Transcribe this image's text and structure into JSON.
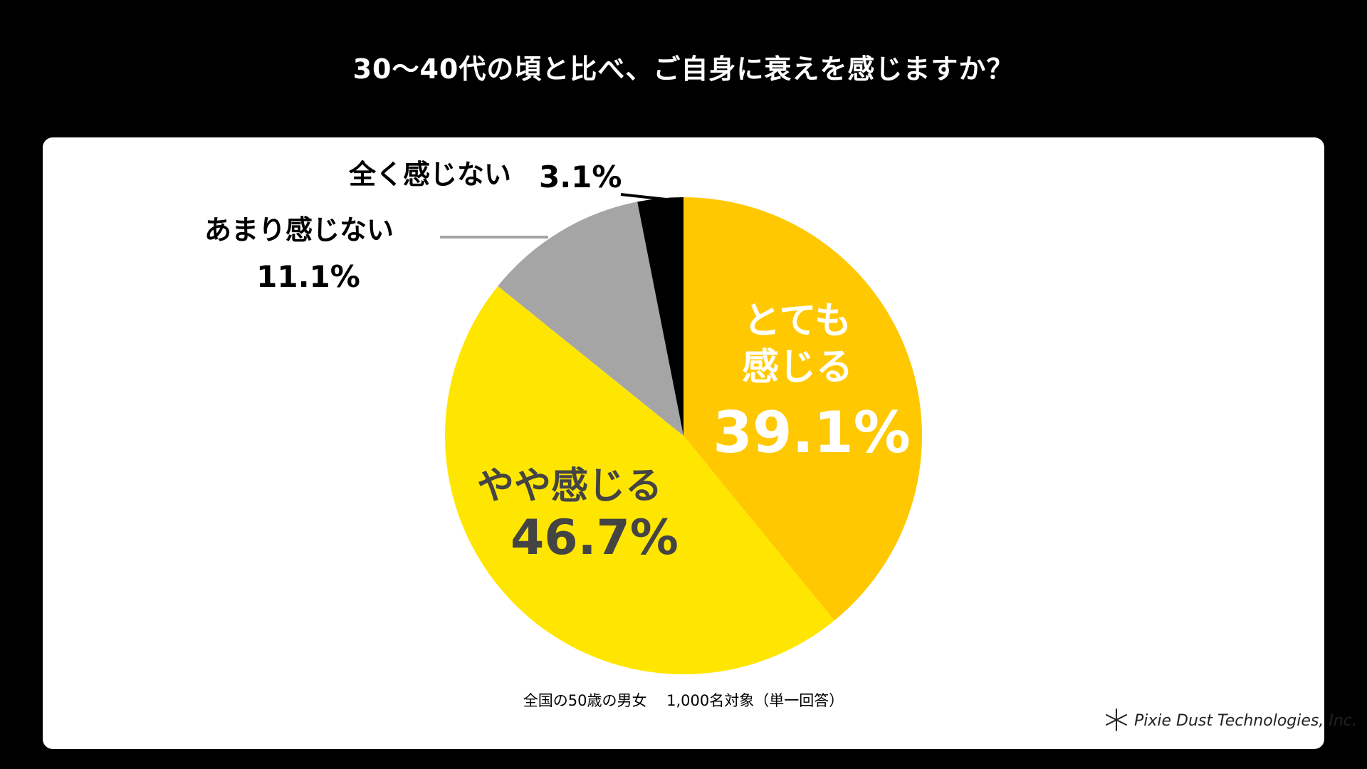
{
  "title": "30〜40代の頃と比べ、ご自身に衰えを感じますか？",
  "footnote": "全国の50歳の男女　 1,000名対象（単一回答）",
  "brand": {
    "name": "Pixie Dust Technologies, Inc.",
    "icon": "asterisk-logo-icon"
  },
  "colors": {
    "background": "#000000",
    "card": "#ffffff",
    "slice_strong": "#FFC800",
    "slice_some": "#FFE600",
    "slice_little": "#A5A5A5",
    "slice_none": "#000000",
    "label_white": "#ffffff",
    "label_dark": "#444444",
    "label_black": "#000000"
  },
  "chart_data": {
    "type": "pie",
    "title": "30〜40代の頃と比べ、ご自身に衰えを感じますか？",
    "slices": [
      {
        "label_lines": [
          "とても",
          "感じる"
        ],
        "value": 39.1,
        "value_text": "39.1%",
        "color": "#FFC800"
      },
      {
        "label_lines": [
          "やや感じる"
        ],
        "value": 46.7,
        "value_text": "46.7%",
        "color": "#FFE600"
      },
      {
        "label_lines": [
          "あまり感じない"
        ],
        "value": 11.1,
        "value_text": "11.1%",
        "color": "#A5A5A5"
      },
      {
        "label_lines": [
          "全く感じない"
        ],
        "value": 3.1,
        "value_text": "3.1%",
        "color": "#000000"
      }
    ],
    "start": "12 o'clock",
    "direction": "clockwise"
  }
}
